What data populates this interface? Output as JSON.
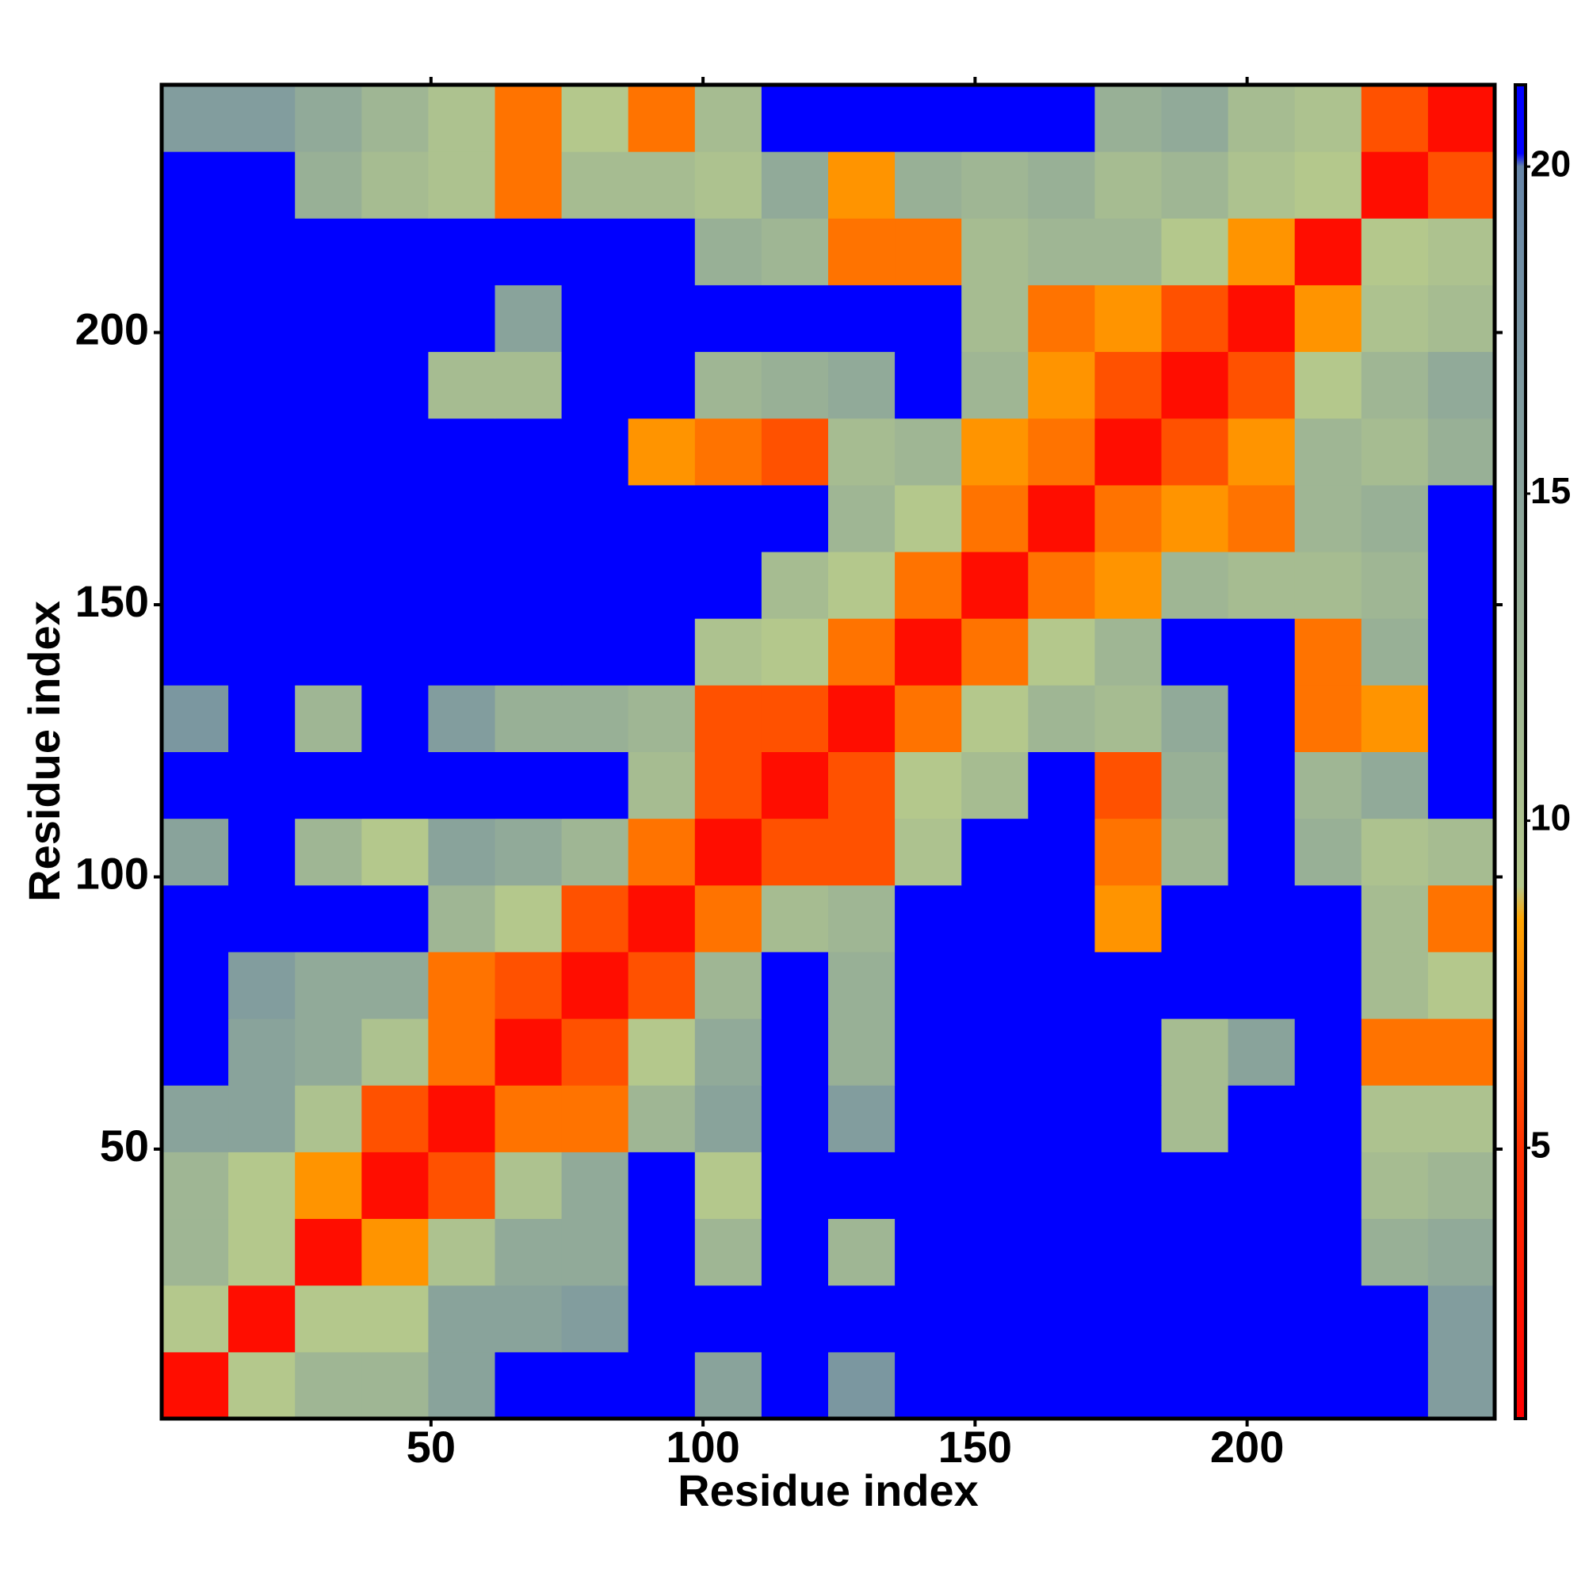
{
  "chart_data": {
    "type": "heatmap",
    "x_label": "Residue index",
    "y_label": "Residue index",
    "x_edges": [
      0.5,
      12.75,
      25,
      37.25,
      49.5,
      61.75,
      74,
      86.25,
      98.5,
      110.75,
      123,
      135.25,
      147.5,
      159.75,
      172,
      184.25,
      196.5,
      208.75,
      221,
      233.25,
      245.5
    ],
    "y_edges": [
      0.5,
      12.75,
      25,
      37.25,
      49.5,
      61.75,
      74,
      86.25,
      98.5,
      110.75,
      123,
      135.25,
      147.5,
      159.75,
      172,
      184.25,
      196.5,
      208.75,
      221,
      233.25,
      245.5
    ],
    "z": [
      [
        2,
        9,
        12,
        12,
        15,
        21,
        21,
        21,
        15,
        21,
        17,
        21,
        21,
        21,
        21,
        21,
        21,
        21,
        21,
        16
      ],
      [
        9,
        2,
        9,
        9,
        15,
        15,
        16,
        21,
        21,
        21,
        21,
        21,
        21,
        21,
        21,
        21,
        21,
        21,
        21,
        16
      ],
      [
        12,
        9,
        2,
        8,
        10,
        14,
        14,
        21,
        12,
        21,
        12,
        21,
        21,
        21,
        21,
        21,
        21,
        21,
        13,
        14
      ],
      [
        12,
        9,
        8,
        2,
        6,
        10,
        14,
        21,
        9,
        21,
        21,
        21,
        21,
        21,
        21,
        21,
        21,
        21,
        11,
        12
      ],
      [
        15,
        15,
        10,
        6,
        2,
        7,
        7,
        12,
        15,
        21,
        16,
        21,
        21,
        21,
        21,
        11,
        21,
        21,
        10,
        10
      ],
      [
        21,
        15,
        14,
        10,
        7,
        2,
        6,
        9,
        14,
        21,
        13,
        21,
        21,
        21,
        21,
        11,
        15,
        21,
        7,
        7
      ],
      [
        21,
        16,
        14,
        14,
        7,
        6,
        2,
        6,
        12,
        21,
        13,
        21,
        21,
        21,
        21,
        21,
        21,
        21,
        11,
        9
      ],
      [
        21,
        21,
        21,
        21,
        12,
        9,
        6,
        2,
        7,
        11,
        12,
        21,
        21,
        21,
        8,
        21,
        21,
        21,
        11,
        7
      ],
      [
        15,
        21,
        12,
        9,
        15,
        14,
        12,
        7,
        2,
        6,
        6,
        10,
        21,
        21,
        7,
        12,
        21,
        13,
        10,
        11
      ],
      [
        21,
        21,
        21,
        21,
        21,
        21,
        21,
        11,
        6,
        2,
        6,
        9,
        11,
        21,
        6,
        13,
        21,
        12,
        14,
        21
      ],
      [
        17,
        21,
        12,
        21,
        16,
        13,
        13,
        12,
        6,
        6,
        2,
        7,
        9,
        12,
        11,
        14,
        21,
        7,
        8,
        21
      ],
      [
        21,
        21,
        21,
        21,
        21,
        21,
        21,
        21,
        10,
        9,
        7,
        2,
        7,
        9,
        12,
        21,
        21,
        7,
        13,
        21
      ],
      [
        21,
        21,
        21,
        21,
        21,
        21,
        21,
        21,
        21,
        11,
        9,
        7,
        2,
        7,
        8,
        12,
        11,
        11,
        12,
        21
      ],
      [
        21,
        21,
        21,
        21,
        21,
        21,
        21,
        21,
        21,
        21,
        12,
        9,
        7,
        2,
        7,
        8,
        7,
        12,
        13,
        21
      ],
      [
        21,
        21,
        21,
        21,
        21,
        21,
        21,
        8,
        7,
        6,
        11,
        12,
        8,
        7,
        2,
        6,
        8,
        12,
        11,
        13
      ],
      [
        21,
        21,
        21,
        21,
        11,
        11,
        21,
        21,
        12,
        13,
        14,
        21,
        12,
        8,
        6,
        2,
        6,
        9,
        12,
        14
      ],
      [
        21,
        21,
        21,
        21,
        21,
        15,
        21,
        21,
        21,
        21,
        21,
        21,
        11,
        7,
        8,
        6,
        2,
        8,
        10,
        11
      ],
      [
        21,
        21,
        21,
        21,
        21,
        21,
        21,
        21,
        13,
        12,
        7,
        7,
        11,
        12,
        12,
        9,
        8,
        2,
        9,
        10
      ],
      [
        21,
        21,
        13,
        11,
        10,
        7,
        11,
        11,
        10,
        14,
        8,
        13,
        12,
        13,
        11,
        12,
        10,
        9,
        2,
        6
      ],
      [
        16,
        16,
        14,
        12,
        10,
        7,
        9,
        7,
        11,
        21,
        21,
        21,
        21,
        21,
        13,
        14,
        11,
        10,
        6,
        2
      ]
    ],
    "xlim": [
      0.5,
      245.5
    ],
    "ylim": [
      0.5,
      245.5
    ],
    "xticks": [
      50,
      100,
      150,
      200
    ],
    "yticks": [
      50,
      100,
      150,
      200
    ],
    "zlim": [
      0.86,
      21.25
    ],
    "zticks": [
      5,
      10,
      15,
      20
    ],
    "colorscale": [
      [
        0.86,
        "#ff0000"
      ],
      [
        5,
        "#ff3000"
      ],
      [
        8.5,
        "#ffa500"
      ],
      [
        9,
        "#b4c88c"
      ],
      [
        20,
        "#6685a8"
      ],
      [
        20.2,
        "#0000ff"
      ],
      [
        21.25,
        "#0000ff"
      ]
    ]
  }
}
